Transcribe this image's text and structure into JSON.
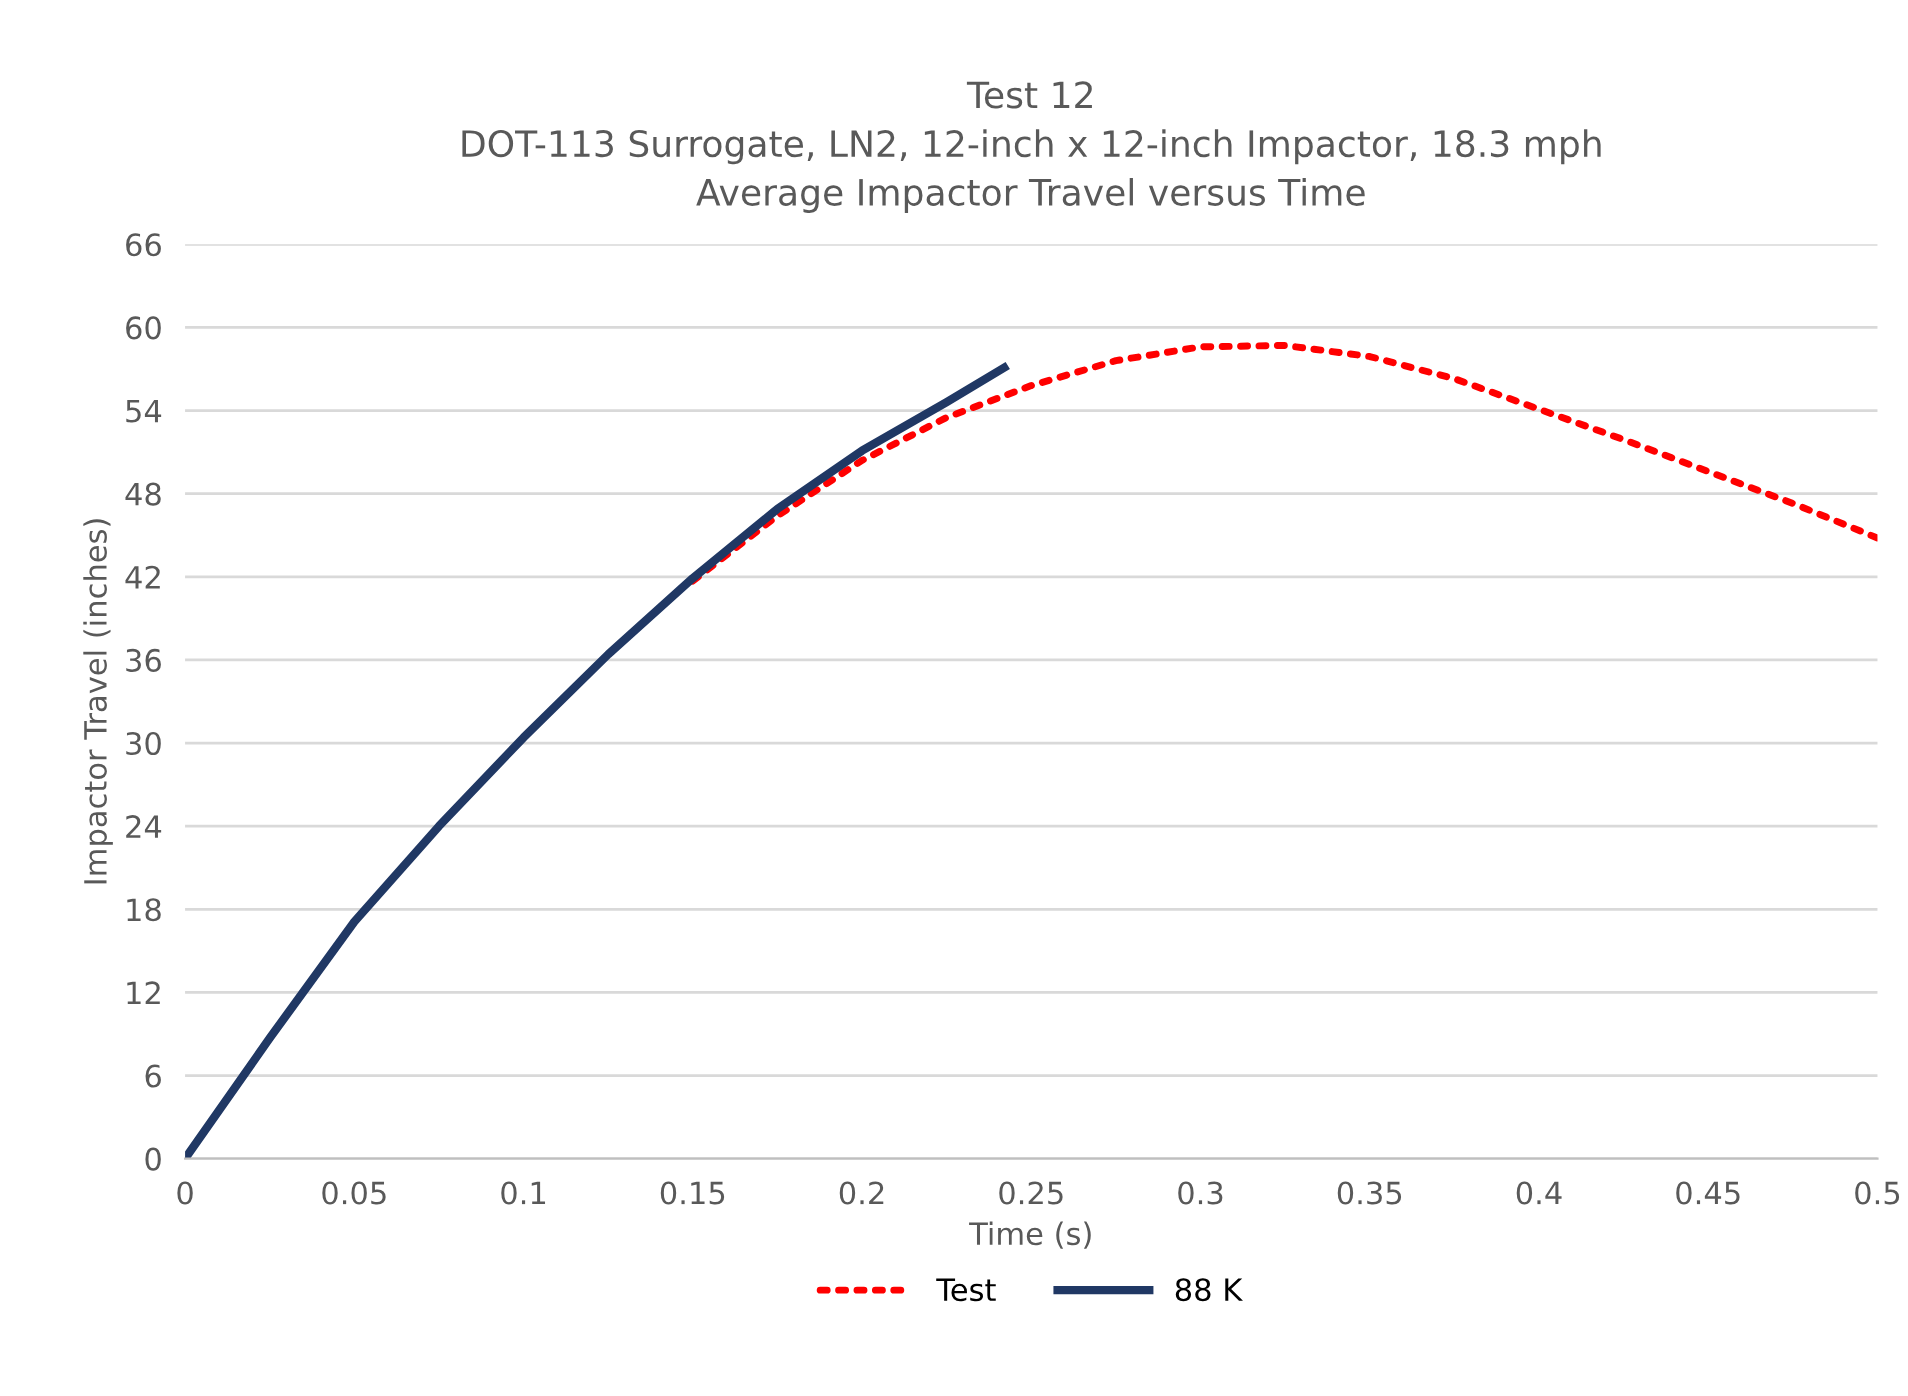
{
  "chart_data": {
    "type": "line",
    "title": "Test 12\nDOT-113 Surrogate, LN2, 12-inch x 12-inch Impactor, 18.3 mph\nAverage Impactor Travel versus Time",
    "xlabel": "Time (s)",
    "ylabel": "Impactor Travel (inches)",
    "xlim": [
      0,
      0.5
    ],
    "xticks": [
      0,
      0.05,
      0.1,
      0.15,
      0.2,
      0.25,
      0.3,
      0.35,
      0.4,
      0.45,
      0.5
    ],
    "ylim": [
      0,
      66
    ],
    "yticks": [
      0,
      6,
      12,
      18,
      24,
      30,
      36,
      42,
      48,
      54,
      60,
      66
    ],
    "grid": "y",
    "legend": "bottom",
    "series": [
      {
        "name": "Test",
        "color": "#ff0000",
        "line_style": "dotted",
        "x": [
          0.15,
          0.175,
          0.2,
          0.225,
          0.25,
          0.275,
          0.3,
          0.325,
          0.35,
          0.375,
          0.4,
          0.425,
          0.45,
          0.475,
          0.5
        ],
        "values": [
          41.7,
          46.4,
          50.4,
          53.5,
          55.8,
          57.6,
          58.6,
          58.7,
          57.9,
          56.3,
          54.1,
          51.9,
          49.6,
          47.3,
          44.8
        ]
      },
      {
        "name": "88 K",
        "color": "#203864",
        "line_style": "solid",
        "x": [
          0,
          0.025,
          0.05,
          0.075,
          0.1,
          0.125,
          0.15,
          0.175,
          0.2,
          0.225,
          0.242
        ],
        "values": [
          0,
          8.7,
          17.1,
          24.0,
          30.4,
          36.4,
          41.9,
          46.9,
          51.1,
          54.6,
          57.1
        ]
      }
    ]
  }
}
